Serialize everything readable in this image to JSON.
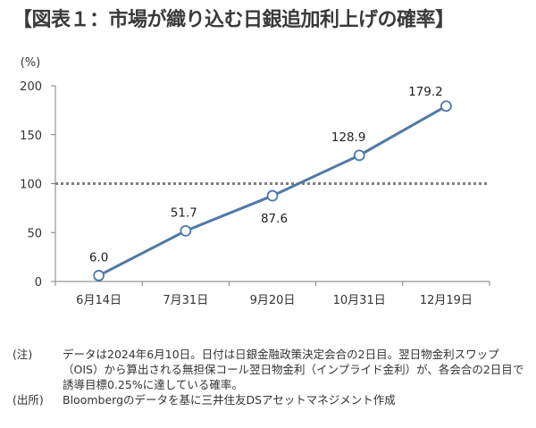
{
  "title": "【図表１：市場が織り込む日銀追加利上げの確率】",
  "chart_data": {
    "type": "line",
    "ylabel": "(%)",
    "ylim": [
      0,
      200
    ],
    "yticks": [
      0,
      50,
      100,
      150,
      200
    ],
    "categories": [
      "6月14日",
      "7月31日",
      "9月20日",
      "10月31日",
      "12月19日"
    ],
    "values": [
      6.0,
      51.7,
      87.6,
      128.9,
      179.2
    ],
    "value_labels": [
      "6.0",
      "51.7",
      "87.6",
      "128.9",
      "179.2"
    ],
    "reference_line": 100,
    "grid": false,
    "colors": {
      "line": "#5079a8",
      "marker_fill": "#ffffff",
      "reference": "#7f7f7f",
      "axis": "#7f7f7f"
    }
  },
  "notes": [
    {
      "label": "(注)",
      "text": "データは2024年6月10日。日付は日銀金融政策決定会合の2日目。翌日物金利スワップ（OIS）から算出される無担保コール翌日物金利（インプライド金利）が、各会合の2日目で誘導目標0.25%に達している確率。"
    },
    {
      "label": "(出所)",
      "text": "Bloombergのデータを基に三井住友DSアセットマネジメント作成"
    }
  ]
}
